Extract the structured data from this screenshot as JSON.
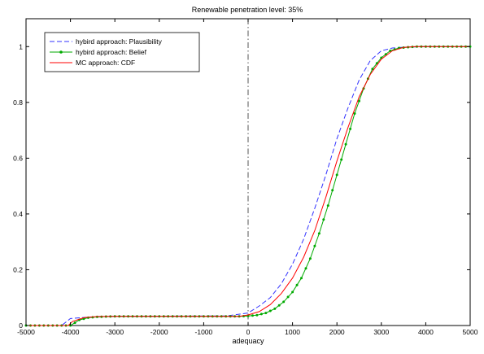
{
  "chart_data": {
    "type": "line",
    "title": "Renewable penetration level: 35%",
    "xlabel": "adequacy",
    "ylabel": "",
    "xlim": [
      -5000,
      5000
    ],
    "ylim": [
      0,
      1.1
    ],
    "xticks": [
      -5000,
      -4000,
      -3000,
      -2000,
      -1000,
      0,
      1000,
      2000,
      3000,
      4000,
      5000
    ],
    "xtick_labels": [
      "-5000",
      "-4000",
      "-3000",
      "-2000",
      "-1000",
      "0",
      "1000",
      "2000",
      "3000",
      "4000",
      "5000"
    ],
    "yticks": [
      0,
      0.2,
      0.4,
      0.6,
      0.8,
      1
    ],
    "ytick_labels": [
      "0",
      "0.2",
      "0.4",
      "0.6",
      "0.8",
      "1"
    ],
    "grid": false,
    "legend_position": "top-left",
    "reference_line": {
      "x": 0,
      "style": "dash-dot",
      "color": "#555555"
    },
    "series": [
      {
        "name": "hybird approach: Plausibility",
        "color": "#3333ff",
        "style": "dashed",
        "marker": "none",
        "points": [
          [
            -5000,
            0
          ],
          [
            -4200,
            0
          ],
          [
            -4000,
            0.025
          ],
          [
            -3600,
            0.03
          ],
          [
            -3000,
            0.033
          ],
          [
            -1000,
            0.034
          ],
          [
            -500,
            0.034
          ],
          [
            0,
            0.045
          ],
          [
            250,
            0.07
          ],
          [
            500,
            0.1
          ],
          [
            750,
            0.15
          ],
          [
            1000,
            0.22
          ],
          [
            1250,
            0.31
          ],
          [
            1500,
            0.42
          ],
          [
            1750,
            0.54
          ],
          [
            2000,
            0.67
          ],
          [
            2250,
            0.78
          ],
          [
            2500,
            0.88
          ],
          [
            2750,
            0.95
          ],
          [
            3000,
            0.985
          ],
          [
            3250,
            0.995
          ],
          [
            3500,
            0.998
          ],
          [
            4000,
            1
          ],
          [
            5000,
            1
          ]
        ]
      },
      {
        "name": "hybird approach: Belief",
        "color": "#00aa00",
        "style": "solid",
        "marker": "dot",
        "points": [
          [
            -5000,
            0
          ],
          [
            -4000,
            0
          ],
          [
            -3900,
            0.01
          ],
          [
            -3800,
            0.02
          ],
          [
            -3600,
            0.028
          ],
          [
            -3400,
            0.031
          ],
          [
            -3200,
            0.032
          ],
          [
            -3000,
            0.033
          ],
          [
            -1000,
            0.033
          ],
          [
            -200,
            0.033
          ],
          [
            0,
            0.034
          ],
          [
            200,
            0.037
          ],
          [
            400,
            0.045
          ],
          [
            600,
            0.06
          ],
          [
            800,
            0.085
          ],
          [
            1000,
            0.12
          ],
          [
            1200,
            0.17
          ],
          [
            1400,
            0.24
          ],
          [
            1600,
            0.33
          ],
          [
            1800,
            0.43
          ],
          [
            2000,
            0.54
          ],
          [
            2200,
            0.65
          ],
          [
            2400,
            0.76
          ],
          [
            2600,
            0.85
          ],
          [
            2800,
            0.92
          ],
          [
            3000,
            0.96
          ],
          [
            3200,
            0.985
          ],
          [
            3400,
            0.995
          ],
          [
            3600,
            0.998
          ],
          [
            3800,
            1
          ],
          [
            5000,
            1
          ]
        ]
      },
      {
        "name": "MC approach: CDF",
        "color": "#ff0000",
        "style": "solid",
        "marker": "none",
        "points": [
          [
            -5000,
            0
          ],
          [
            -4050,
            0
          ],
          [
            -3950,
            0.015
          ],
          [
            -3700,
            0.028
          ],
          [
            -3400,
            0.032
          ],
          [
            -3000,
            0.033
          ],
          [
            -1000,
            0.033
          ],
          [
            -200,
            0.033
          ],
          [
            0,
            0.038
          ],
          [
            250,
            0.05
          ],
          [
            500,
            0.075
          ],
          [
            750,
            0.115
          ],
          [
            1000,
            0.17
          ],
          [
            1250,
            0.245
          ],
          [
            1500,
            0.34
          ],
          [
            1750,
            0.46
          ],
          [
            2000,
            0.59
          ],
          [
            2250,
            0.71
          ],
          [
            2500,
            0.82
          ],
          [
            2750,
            0.9
          ],
          [
            3000,
            0.955
          ],
          [
            3250,
            0.985
          ],
          [
            3500,
            0.997
          ],
          [
            3750,
            1
          ],
          [
            5000,
            1
          ]
        ]
      }
    ]
  }
}
